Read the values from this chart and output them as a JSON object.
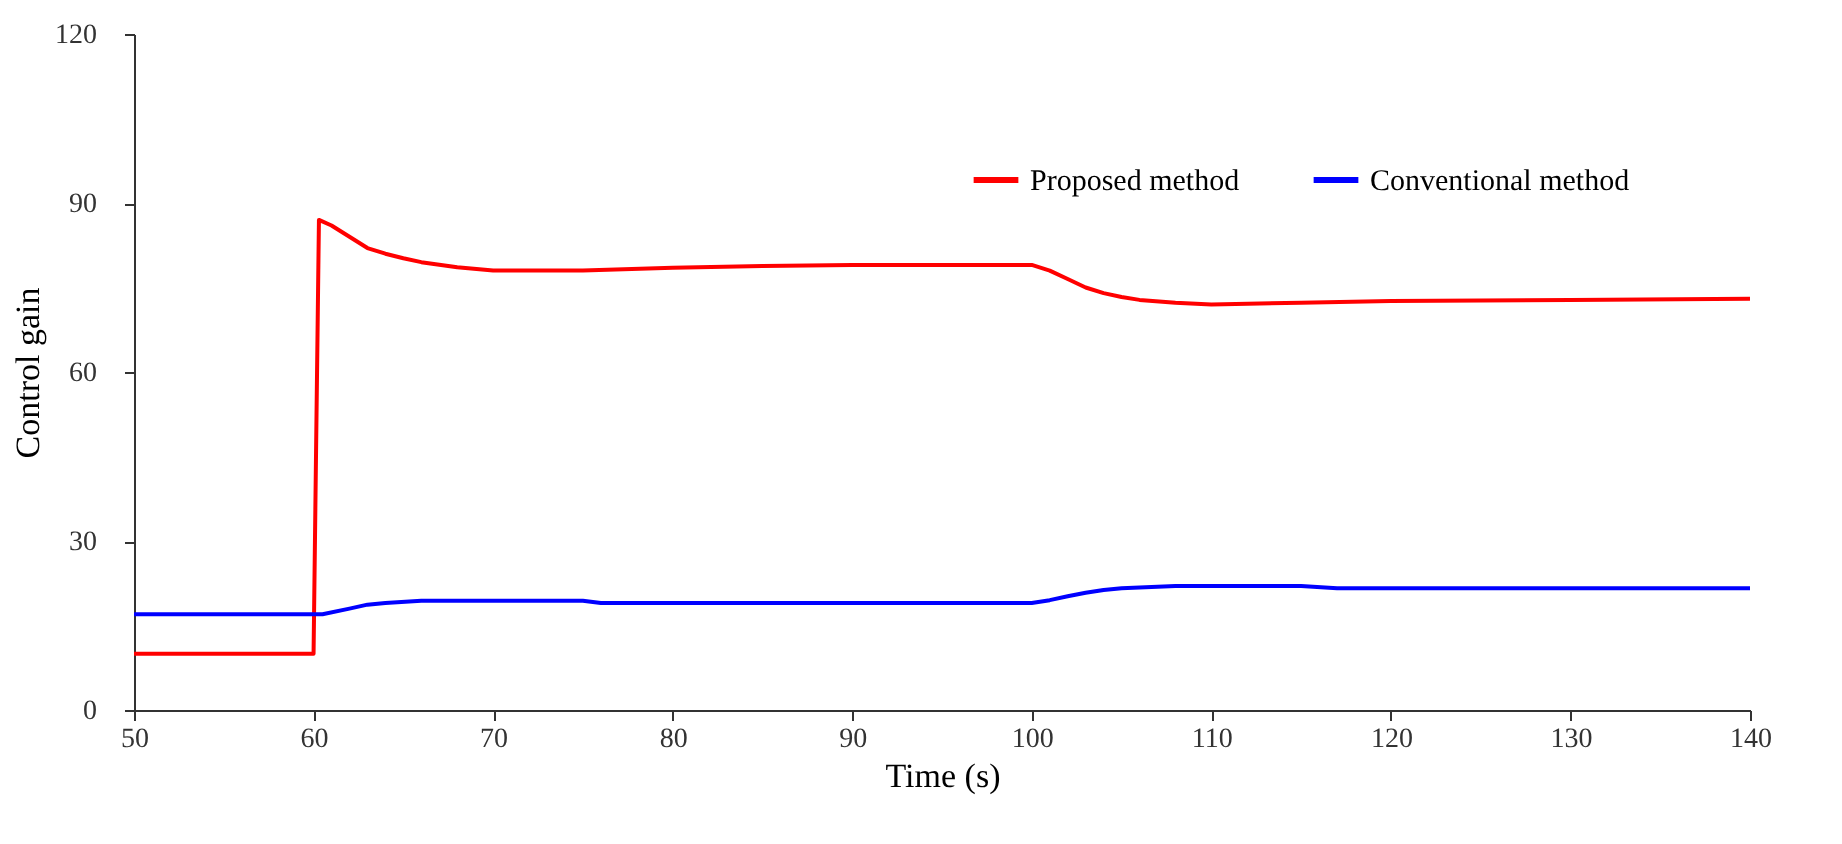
{
  "chart_data": {
    "type": "line",
    "xlabel": "Time (s)",
    "ylabel": "Control gain",
    "xlim": [
      50,
      140
    ],
    "xticks": [
      50,
      60,
      70,
      80,
      90,
      100,
      110,
      120,
      130,
      140
    ],
    "ylim": [
      0,
      120
    ],
    "yticks": [
      0,
      30,
      60,
      90,
      120
    ],
    "grid": false,
    "legend": "top right",
    "marker": "none",
    "line_style": "solid",
    "series": [
      {
        "name": "Proposed method",
        "color": "#ff0000",
        "x": [
          50,
          60,
          60.3,
          61,
          62,
          63,
          64,
          65,
          66,
          68,
          70,
          75,
          80,
          85,
          90,
          95,
          100,
          101,
          102,
          103,
          104,
          105,
          106,
          108,
          110,
          115,
          120,
          130,
          140
        ],
        "values": [
          10,
          10,
          87,
          86,
          84,
          82,
          81,
          80.2,
          79.5,
          78.6,
          78,
          78,
          78.5,
          78.8,
          79,
          79,
          79,
          78,
          76.5,
          75,
          74,
          73.3,
          72.8,
          72.3,
          72,
          72.3,
          72.6,
          72.8,
          73
        ]
      },
      {
        "name": "Conventional method",
        "color": "#0000ff",
        "x": [
          50,
          60.5,
          62,
          63,
          64,
          66,
          70,
          75,
          76,
          80,
          90,
          100,
          101,
          102,
          103,
          104,
          105,
          108,
          110,
          115,
          117,
          120,
          130,
          140
        ],
        "values": [
          17,
          17,
          18,
          18.7,
          19,
          19.4,
          19.4,
          19.4,
          19,
          19,
          19,
          19,
          19.5,
          20.2,
          20.8,
          21.3,
          21.6,
          22,
          22,
          22,
          21.6,
          21.6,
          21.6,
          21.6
        ]
      }
    ]
  }
}
